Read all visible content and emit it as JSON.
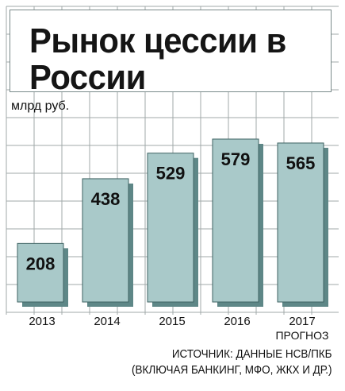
{
  "header": {
    "title": "Рынок цессии в России"
  },
  "colors": {
    "bar_face": "#a9c9c9",
    "bar_side": "#5e8787",
    "bar_edge": "#3e6262",
    "grid": "#a0a8a8",
    "background": "#ffffff"
  },
  "chart_data": {
    "type": "bar",
    "title": "Рынок цессии в России",
    "ylabel": "млрд руб.",
    "xlabel": "",
    "categories": [
      "2013",
      "2014",
      "2015",
      "2016",
      "2017"
    ],
    "category_sublabels": [
      "",
      "",
      "",
      "",
      "ПРОГНОЗ"
    ],
    "values": [
      208,
      438,
      529,
      579,
      565
    ],
    "data_labels": [
      "208",
      "438",
      "529",
      "579",
      "565"
    ],
    "ylim": [
      0,
      600
    ],
    "grid": true,
    "legend": "none"
  },
  "footer": {
    "source_line1": "ИСТОЧНИК: ДАННЫЕ НСВ/ПКБ",
    "source_line2": "(ВКЛЮЧАЯ БАНКИНГ, МФО, ЖКХ И ДР.)"
  }
}
